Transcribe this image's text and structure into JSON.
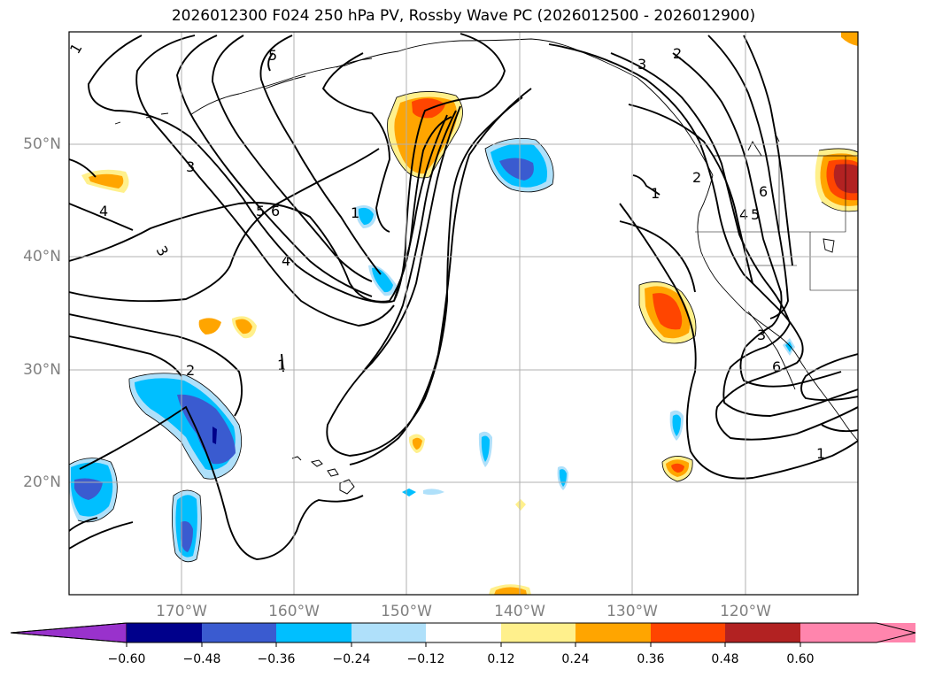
{
  "title": "2026012300 F024 250 hPa PV, Rossby Wave PC (2026012500 - 2026012900)",
  "lat_labels": [
    "50°N",
    "40°N",
    "30°N",
    "20°N"
  ],
  "lon_labels": [
    "170°W",
    "160°W",
    "150°W",
    "140°W",
    "130°W",
    "120°W"
  ],
  "colorbar": {
    "ticks": [
      "−0.60",
      "−0.48",
      "−0.36",
      "−0.24",
      "−0.12",
      "0.12",
      "0.24",
      "0.36",
      "0.48",
      "0.60"
    ],
    "colors": [
      "#9932cc",
      "#00008b",
      "#3a5bd0",
      "#00bfff",
      "#afe0fa",
      "#ffffff",
      "#fff08c",
      "#ffa500",
      "#ff4500",
      "#b22222",
      "#ff85ad"
    ]
  },
  "contour_labels": {
    "l1": "1",
    "l2": "2",
    "l3": "3",
    "l4": "4",
    "l5": "5",
    "l6": "6",
    "l3b": "3",
    "l4b": "4",
    "l5b": "5",
    "l6b": "6"
  }
}
